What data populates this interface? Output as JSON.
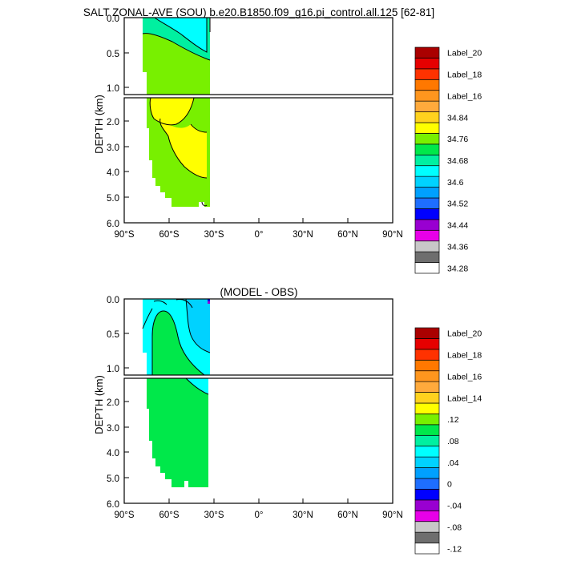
{
  "title": "SALT ZONAL-AVE (SOU) b.e20.B1850.f09_g16.pi_control.all.125 [62-81]",
  "bottom_title": "(MODEL - OBS)",
  "ylabel": "DEPTH (km)",
  "x_tick_labels": [
    "90°S",
    "60°S",
    "30°S",
    "0°",
    "30°N",
    "60°N",
    "90°N"
  ],
  "y_tick_labels_top": [
    "0.0",
    "0.5",
    "1.0"
  ],
  "y_tick_labels_bottom": [
    "2.0",
    "3.0",
    "4.0",
    "5.0",
    "6.0"
  ],
  "colors": {
    "colorbar": [
      "#ffffff",
      "#6e6e6e",
      "#c8c8c8",
      "#e800e8",
      "#9900d1",
      "#0000ff",
      "#1e6eff",
      "#00a0ff",
      "#00d2ff",
      "#00ffff",
      "#00f0a0",
      "#00e84a",
      "#78f000",
      "#ffff00",
      "#ffd21e",
      "#ffaa3c",
      "#ff961e",
      "#ff7800",
      "#ff3200",
      "#e60000",
      "#aa0000"
    ]
  },
  "chart_data": [
    {
      "type": "contour",
      "panel": "top",
      "title": "SALT ZONAL-AVE (SOU) b.e20.B1850.f09_g16.pi_control.all.125 [62-81]",
      "ylabel": "DEPTH (km)",
      "xlim": [
        -90,
        90
      ],
      "ylim_upper": [
        0,
        1.1
      ],
      "ylim_lower": [
        1.1,
        6.0
      ],
      "x_ticks": [
        -90,
        -60,
        -30,
        0,
        30,
        60,
        90
      ],
      "colorbar_labels": [
        "34.28",
        "34.36",
        "34.44",
        "34.52",
        "34.6",
        "34.68",
        "34.76",
        "34.84",
        "Label_16",
        "Label_18",
        "Label_20"
      ],
      "colorbar_label_colors": [
        0,
        2,
        4,
        6,
        8,
        10,
        12,
        14,
        16,
        18,
        20
      ]
    },
    {
      "type": "contour",
      "panel": "bottom",
      "title": "(MODEL - OBS)",
      "ylabel": "DEPTH (km)",
      "xlim": [
        -90,
        90
      ],
      "ylim_upper": [
        0,
        1.1
      ],
      "ylim_lower": [
        1.1,
        6.0
      ],
      "x_ticks": [
        -90,
        -60,
        -30,
        0,
        30,
        60,
        90
      ],
      "colorbar_labels": [
        "-.12",
        "-.08",
        "-.04",
        "0",
        ".04",
        ".08",
        ".12",
        "Label_14",
        "Label_16",
        "Label_18",
        "Label_20"
      ],
      "colorbar_label_colors": [
        0,
        2,
        4,
        6,
        8,
        10,
        12,
        14,
        16,
        18,
        20
      ]
    }
  ]
}
